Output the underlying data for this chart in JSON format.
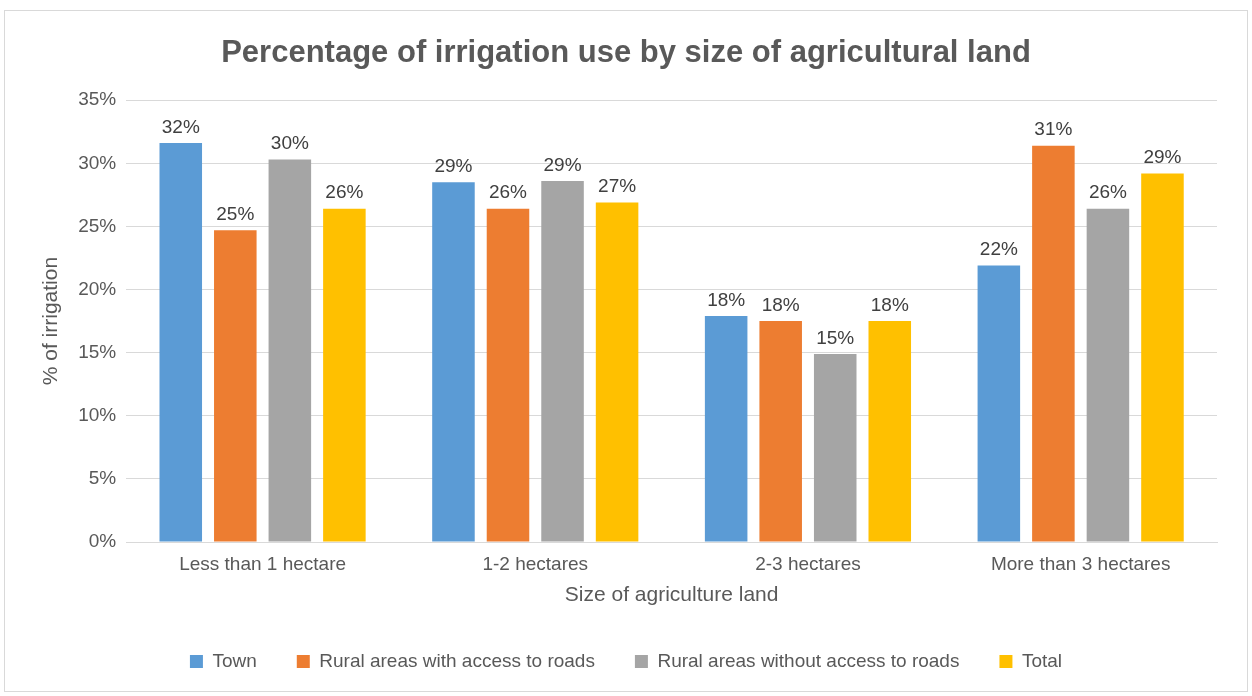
{
  "chart_data": {
    "type": "bar",
    "title": "Percentage of irrigation use by size of agricultural land",
    "xlabel": "Size of agriculture land",
    "ylabel": "% of irrigation",
    "categories": [
      "Less than 1 hectare",
      "1-2 hectares",
      "2-3 hectares",
      "More than 3 hectares"
    ],
    "series": [
      {
        "name": "Town",
        "color": "#5b9bd5",
        "values": [
          31.6,
          28.5,
          17.9,
          21.9
        ],
        "value_labels": [
          "32%",
          "29%",
          "18%",
          "22%"
        ]
      },
      {
        "name": "Rural areas with access to roads",
        "color": "#ed7d31",
        "values": [
          24.7,
          26.4,
          17.5,
          31.4
        ],
        "value_labels": [
          "25%",
          "26%",
          "18%",
          "31%"
        ]
      },
      {
        "name": "Rural areas without access to roads",
        "color": "#a5a5a5",
        "values": [
          30.3,
          28.6,
          14.9,
          26.4
        ],
        "value_labels": [
          "30%",
          "29%",
          "15%",
          "26%"
        ]
      },
      {
        "name": "Total",
        "color": "#ffc000",
        "values": [
          26.4,
          26.9,
          17.5,
          29.2
        ],
        "value_labels": [
          "26%",
          "27%",
          "18%",
          "29%"
        ]
      }
    ],
    "ylim": [
      0,
      35
    ],
    "yticks": [
      {
        "value": 0,
        "label": "0%"
      },
      {
        "value": 5,
        "label": "5%"
      },
      {
        "value": 10,
        "label": "10%"
      },
      {
        "value": 15,
        "label": "15%"
      },
      {
        "value": 20,
        "label": "20%"
      },
      {
        "value": 25,
        "label": "25%"
      },
      {
        "value": 30,
        "label": "30%"
      },
      {
        "value": 35,
        "label": "35%"
      }
    ],
    "grid": "y",
    "legend": "bottom"
  }
}
